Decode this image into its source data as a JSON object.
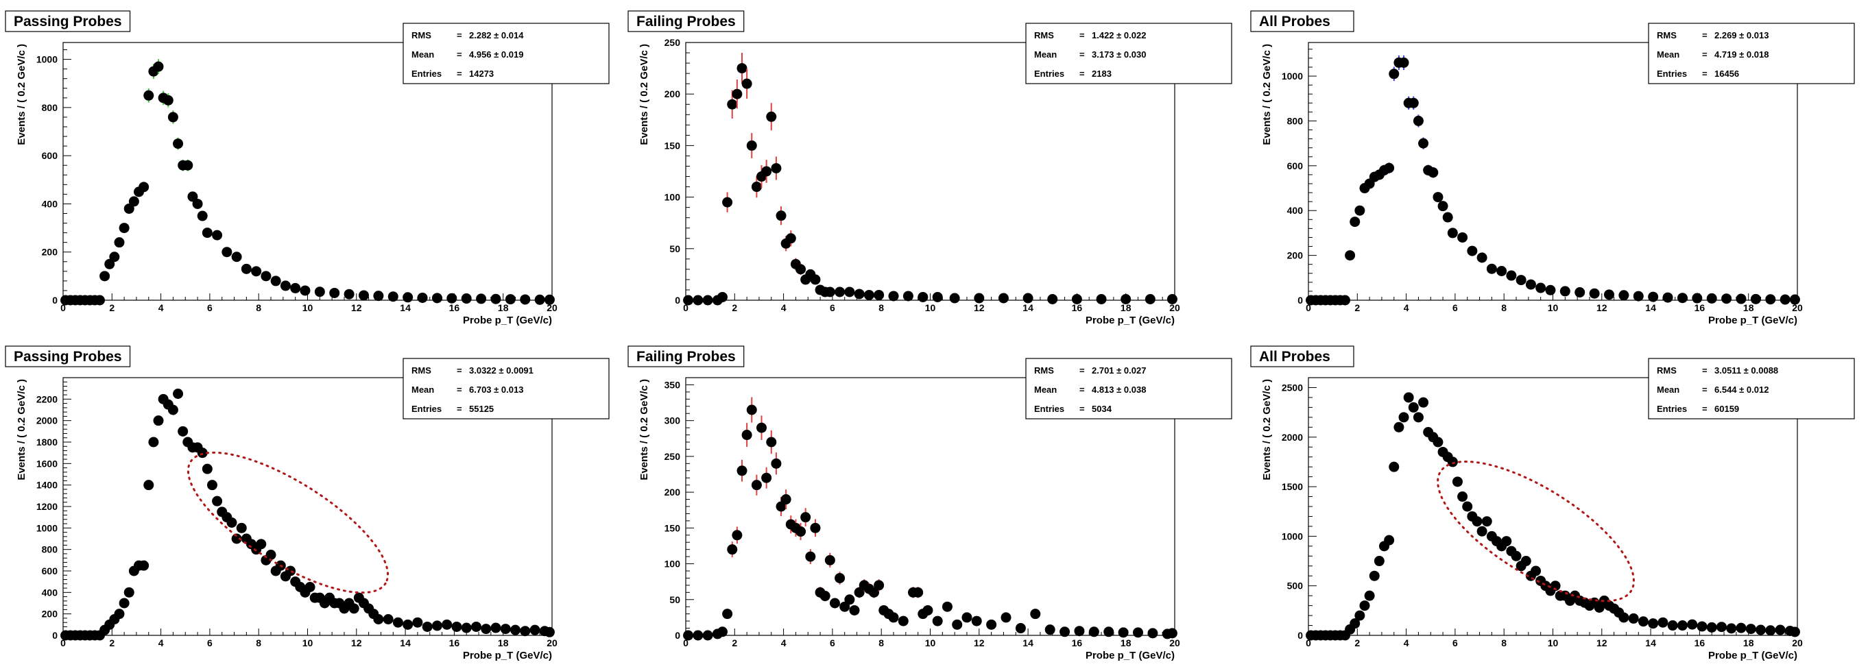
{
  "chart_data": [
    {
      "type": "scatter",
      "title": "Passing Probes",
      "xlabel": "Probe p_T (GeV/c)",
      "ylabel": "Events / ( 0.2 GeV/c )",
      "xlim": [
        0,
        20
      ],
      "ylim": [
        0,
        1070
      ],
      "xticks": [
        0,
        2,
        4,
        6,
        8,
        10,
        12,
        14,
        16,
        18,
        20
      ],
      "yticks": [
        0,
        200,
        400,
        600,
        800,
        1000
      ],
      "error_color": "#33cc33",
      "stats": [
        {
          "label": "RMS",
          "value": "2.282 ± 0.014"
        },
        {
          "label": "Mean",
          "value": "4.956 ± 0.019"
        },
        {
          "label": "Entries",
          "value": "14273"
        }
      ],
      "series": [
        {
          "x": [
            0.1,
            0.3,
            0.5,
            0.7,
            0.9,
            1.1,
            1.3,
            1.5,
            1.7,
            1.9,
            2.1,
            2.3,
            2.5,
            2.7,
            2.9,
            3.1,
            3.3,
            3.5,
            3.7,
            3.9,
            4.1,
            4.3,
            4.5,
            4.7,
            4.9,
            5.1,
            5.3,
            5.5,
            5.7,
            5.9,
            6.3,
            6.7,
            7.1,
            7.5,
            7.9,
            8.3,
            8.7,
            9.1,
            9.5,
            9.9,
            10.5,
            11.1,
            11.7,
            12.3,
            12.9,
            13.5,
            14.1,
            14.7,
            15.3,
            15.9,
            16.5,
            17.1,
            17.7,
            18.3,
            18.9,
            19.5,
            19.9
          ],
          "y": [
            0,
            0,
            0,
            0,
            0,
            0,
            0,
            0,
            100,
            150,
            180,
            240,
            300,
            380,
            410,
            450,
            470,
            850,
            950,
            970,
            840,
            830,
            760,
            650,
            560,
            560,
            430,
            400,
            350,
            280,
            270,
            200,
            180,
            130,
            120,
            100,
            80,
            60,
            50,
            40,
            35,
            30,
            25,
            20,
            18,
            15,
            12,
            10,
            9,
            8,
            7,
            6,
            5,
            4,
            3,
            2,
            2
          ]
        }
      ]
    },
    {
      "type": "scatter",
      "title": "Failing Probes",
      "xlabel": "Probe p_T (GeV/c)",
      "ylabel": "Events / ( 0.2 GeV/c )",
      "xlim": [
        0,
        20
      ],
      "ylim": [
        0,
        250
      ],
      "xticks": [
        0,
        2,
        4,
        6,
        8,
        10,
        12,
        14,
        16,
        18,
        20
      ],
      "yticks": [
        0,
        50,
        100,
        150,
        200,
        250
      ],
      "error_color": "#e04040",
      "stats": [
        {
          "label": "RMS",
          "value": "1.422 ± 0.022"
        },
        {
          "label": "Mean",
          "value": "3.173 ± 0.030"
        },
        {
          "label": "Entries",
          "value": "2183"
        }
      ],
      "series": [
        {
          "x": [
            0.1,
            0.5,
            0.9,
            1.3,
            1.5,
            1.7,
            1.9,
            2.1,
            2.3,
            2.5,
            2.7,
            2.9,
            3.1,
            3.3,
            3.5,
            3.7,
            3.9,
            4.1,
            4.3,
            4.5,
            4.7,
            4.9,
            5.1,
            5.3,
            5.5,
            5.7,
            5.9,
            6.3,
            6.7,
            7.1,
            7.5,
            7.9,
            8.5,
            9.1,
            9.7,
            10.3,
            11,
            12,
            13,
            14,
            15,
            16,
            17,
            18,
            19,
            19.9
          ],
          "y": [
            0,
            0,
            0,
            0,
            3,
            95,
            190,
            200,
            225,
            210,
            150,
            110,
            120,
            125,
            178,
            128,
            82,
            55,
            60,
            35,
            30,
            20,
            25,
            20,
            10,
            8,
            8,
            8,
            8,
            6,
            5,
            5,
            4,
            4,
            3,
            3,
            2,
            2,
            2,
            2,
            1,
            1,
            1,
            1,
            1,
            1
          ]
        }
      ]
    },
    {
      "type": "scatter",
      "title": "All Probes",
      "xlabel": "Probe p_T (GeV/c)",
      "ylabel": "Events / ( 0.2 GeV/c )",
      "xlim": [
        0,
        20
      ],
      "ylim": [
        0,
        1150
      ],
      "xticks": [
        0,
        2,
        4,
        6,
        8,
        10,
        12,
        14,
        16,
        18,
        20
      ],
      "yticks": [
        0,
        200,
        400,
        600,
        800,
        1000
      ],
      "error_color": "#4040e0",
      "stats": [
        {
          "label": "RMS",
          "value": "2.269 ± 0.013"
        },
        {
          "label": "Mean",
          "value": "4.719 ± 0.018"
        },
        {
          "label": "Entries",
          "value": "16456"
        }
      ],
      "series": [
        {
          "x": [
            0.1,
            0.3,
            0.5,
            0.7,
            0.9,
            1.1,
            1.3,
            1.5,
            1.7,
            1.9,
            2.1,
            2.3,
            2.5,
            2.7,
            2.9,
            3.1,
            3.3,
            3.5,
            3.7,
            3.9,
            4.1,
            4.3,
            4.5,
            4.7,
            4.9,
            5.1,
            5.3,
            5.5,
            5.7,
            5.9,
            6.3,
            6.7,
            7.1,
            7.5,
            7.9,
            8.3,
            8.7,
            9.1,
            9.5,
            9.9,
            10.5,
            11.1,
            11.7,
            12.3,
            12.9,
            13.5,
            14.1,
            14.7,
            15.3,
            15.9,
            16.5,
            17.1,
            17.7,
            18.3,
            18.9,
            19.5,
            19.9
          ],
          "y": [
            0,
            0,
            0,
            0,
            0,
            0,
            0,
            0,
            200,
            350,
            400,
            500,
            520,
            550,
            560,
            580,
            590,
            1010,
            1060,
            1060,
            880,
            880,
            800,
            700,
            580,
            570,
            460,
            420,
            370,
            300,
            280,
            220,
            190,
            140,
            130,
            110,
            90,
            70,
            55,
            45,
            40,
            35,
            30,
            25,
            22,
            18,
            15,
            12,
            10,
            9,
            8,
            7,
            6,
            5,
            4,
            3,
            3
          ]
        }
      ]
    },
    {
      "type": "scatter",
      "title": "Passing Probes",
      "xlabel": "Probe p_T (GeV/c)",
      "ylabel": "Events / ( 0.2 GeV/c )",
      "xlim": [
        0,
        20
      ],
      "ylim": [
        0,
        2400
      ],
      "xticks": [
        0,
        2,
        4,
        6,
        8,
        10,
        12,
        14,
        16,
        18,
        20
      ],
      "yticks": [
        0,
        200,
        400,
        600,
        800,
        1000,
        1200,
        1400,
        1600,
        1800,
        2000,
        2200
      ],
      "error_color": "#33cc33",
      "ellipse": {
        "cx": 9.2,
        "cy": 1050,
        "rx": 4.7,
        "ry": 380,
        "tilt": 32
      },
      "stats": [
        {
          "label": "RMS",
          "value": "3.0322 ± 0.0091"
        },
        {
          "label": "Mean",
          "value": "6.703 ± 0.013"
        },
        {
          "label": "Entries",
          "value": "55125"
        }
      ],
      "series": [
        {
          "x": [
            0.1,
            0.3,
            0.5,
            0.7,
            0.9,
            1.1,
            1.3,
            1.5,
            1.7,
            1.9,
            2.1,
            2.3,
            2.5,
            2.7,
            2.9,
            3.1,
            3.3,
            3.5,
            3.7,
            3.9,
            4.1,
            4.3,
            4.5,
            4.7,
            4.9,
            5.1,
            5.3,
            5.5,
            5.7,
            5.9,
            6.1,
            6.3,
            6.5,
            6.7,
            6.9,
            7.1,
            7.3,
            7.5,
            7.7,
            7.9,
            8.1,
            8.3,
            8.5,
            8.7,
            8.9,
            9.1,
            9.3,
            9.5,
            9.7,
            9.9,
            10.1,
            10.3,
            10.5,
            10.7,
            10.9,
            11.1,
            11.3,
            11.5,
            11.7,
            11.9,
            12.1,
            12.3,
            12.5,
            12.7,
            12.9,
            13.3,
            13.7,
            14.1,
            14.5,
            14.9,
            15.3,
            15.7,
            16.1,
            16.5,
            16.9,
            17.3,
            17.7,
            18.1,
            18.5,
            18.9,
            19.3,
            19.7,
            19.9
          ],
          "y": [
            0,
            0,
            0,
            0,
            0,
            0,
            0,
            0,
            50,
            100,
            150,
            200,
            300,
            400,
            600,
            650,
            650,
            1400,
            1800,
            2000,
            2200,
            2150,
            2100,
            2250,
            1900,
            1800,
            1750,
            1750,
            1700,
            1550,
            1400,
            1250,
            1150,
            1100,
            1050,
            900,
            1000,
            900,
            850,
            800,
            850,
            700,
            750,
            600,
            650,
            550,
            600,
            500,
            450,
            400,
            450,
            350,
            350,
            300,
            350,
            300,
            300,
            250,
            300,
            250,
            350,
            300,
            250,
            200,
            150,
            150,
            120,
            100,
            120,
            80,
            90,
            100,
            80,
            70,
            80,
            60,
            70,
            60,
            50,
            40,
            50,
            40,
            30
          ]
        }
      ]
    },
    {
      "type": "scatter",
      "title": "Failing Probes",
      "xlabel": "Probe p_T (GeV/c)",
      "ylabel": "Events / ( 0.2 GeV/c )",
      "xlim": [
        0,
        20
      ],
      "ylim": [
        0,
        360
      ],
      "xticks": [
        0,
        2,
        4,
        6,
        8,
        10,
        12,
        14,
        16,
        18,
        20
      ],
      "yticks": [
        0,
        50,
        100,
        150,
        200,
        250,
        300,
        350
      ],
      "error_color": "#e04040",
      "stats": [
        {
          "label": "RMS",
          "value": "2.701 ± 0.027"
        },
        {
          "label": "Mean",
          "value": "4.813 ± 0.038"
        },
        {
          "label": "Entries",
          "value": "5034"
        }
      ],
      "series": [
        {
          "x": [
            0.1,
            0.5,
            0.9,
            1.3,
            1.5,
            1.7,
            1.9,
            2.1,
            2.3,
            2.5,
            2.7,
            2.9,
            3.1,
            3.3,
            3.5,
            3.7,
            3.9,
            4.1,
            4.3,
            4.5,
            4.7,
            4.9,
            5.1,
            5.3,
            5.5,
            5.7,
            5.9,
            6.1,
            6.3,
            6.5,
            6.7,
            6.9,
            7.1,
            7.3,
            7.5,
            7.7,
            7.9,
            8.1,
            8.3,
            8.5,
            8.9,
            9.3,
            9.5,
            9.7,
            9.9,
            10.3,
            10.7,
            11.1,
            11.5,
            11.9,
            12.5,
            13.1,
            13.7,
            14.3,
            14.9,
            15.5,
            16.1,
            16.7,
            17.3,
            17.9,
            18.5,
            19.1,
            19.7,
            19.9
          ],
          "y": [
            0,
            0,
            0,
            2,
            5,
            30,
            120,
            140,
            230,
            280,
            315,
            210,
            290,
            220,
            270,
            240,
            180,
            190,
            155,
            150,
            145,
            165,
            110,
            150,
            60,
            55,
            105,
            45,
            80,
            40,
            50,
            35,
            60,
            70,
            65,
            60,
            70,
            35,
            30,
            25,
            20,
            60,
            60,
            30,
            35,
            20,
            40,
            15,
            25,
            20,
            15,
            25,
            10,
            30,
            8,
            5,
            6,
            5,
            5,
            4,
            4,
            3,
            2,
            3
          ]
        }
      ]
    },
    {
      "type": "scatter",
      "title": "All Probes",
      "xlabel": "Probe p_T (GeV/c)",
      "ylabel": "Events / ( 0.2 GeV/c )",
      "xlim": [
        0,
        20
      ],
      "ylim": [
        0,
        2600
      ],
      "xticks": [
        0,
        2,
        4,
        6,
        8,
        10,
        12,
        14,
        16,
        18,
        20
      ],
      "yticks": [
        0,
        500,
        1000,
        1500,
        2000,
        2500
      ],
      "error_color": "#4040e0",
      "ellipse": {
        "cx": 9.3,
        "cy": 1050,
        "rx": 4.6,
        "ry": 430,
        "tilt": 32
      },
      "stats": [
        {
          "label": "RMS",
          "value": "3.0511 ± 0.0088"
        },
        {
          "label": "Mean",
          "value": "6.544 ± 0.012"
        },
        {
          "label": "Entries",
          "value": "60159"
        }
      ],
      "series": [
        {
          "x": [
            0.1,
            0.3,
            0.5,
            0.7,
            0.9,
            1.1,
            1.3,
            1.5,
            1.7,
            1.9,
            2.1,
            2.3,
            2.5,
            2.7,
            2.9,
            3.1,
            3.3,
            3.5,
            3.7,
            3.9,
            4.1,
            4.3,
            4.5,
            4.7,
            4.9,
            5.1,
            5.3,
            5.5,
            5.7,
            5.9,
            6.1,
            6.3,
            6.5,
            6.7,
            6.9,
            7.1,
            7.3,
            7.5,
            7.7,
            7.9,
            8.1,
            8.3,
            8.5,
            8.7,
            8.9,
            9.1,
            9.3,
            9.5,
            9.7,
            9.9,
            10.1,
            10.3,
            10.5,
            10.7,
            10.9,
            11.1,
            11.3,
            11.5,
            11.7,
            11.9,
            12.1,
            12.3,
            12.5,
            12.7,
            12.9,
            13.3,
            13.7,
            14.1,
            14.5,
            14.9,
            15.3,
            15.7,
            16.1,
            16.5,
            16.9,
            17.3,
            17.7,
            18.1,
            18.5,
            18.9,
            19.3,
            19.7,
            19.9
          ],
          "y": [
            0,
            0,
            0,
            0,
            0,
            0,
            0,
            0,
            60,
            120,
            200,
            300,
            400,
            600,
            750,
            900,
            960,
            1700,
            2100,
            2200,
            2400,
            2300,
            2200,
            2350,
            2050,
            2000,
            1950,
            1850,
            1800,
            1750,
            1550,
            1400,
            1300,
            1200,
            1150,
            1050,
            1150,
            1000,
            950,
            900,
            950,
            850,
            800,
            700,
            750,
            600,
            650,
            550,
            500,
            450,
            500,
            400,
            400,
            350,
            400,
            350,
            330,
            300,
            330,
            280,
            350,
            300,
            270,
            230,
            180,
            170,
            140,
            120,
            130,
            100,
            100,
            110,
            90,
            80,
            85,
            70,
            75,
            65,
            55,
            50,
            55,
            45,
            35
          ]
        }
      ]
    }
  ]
}
